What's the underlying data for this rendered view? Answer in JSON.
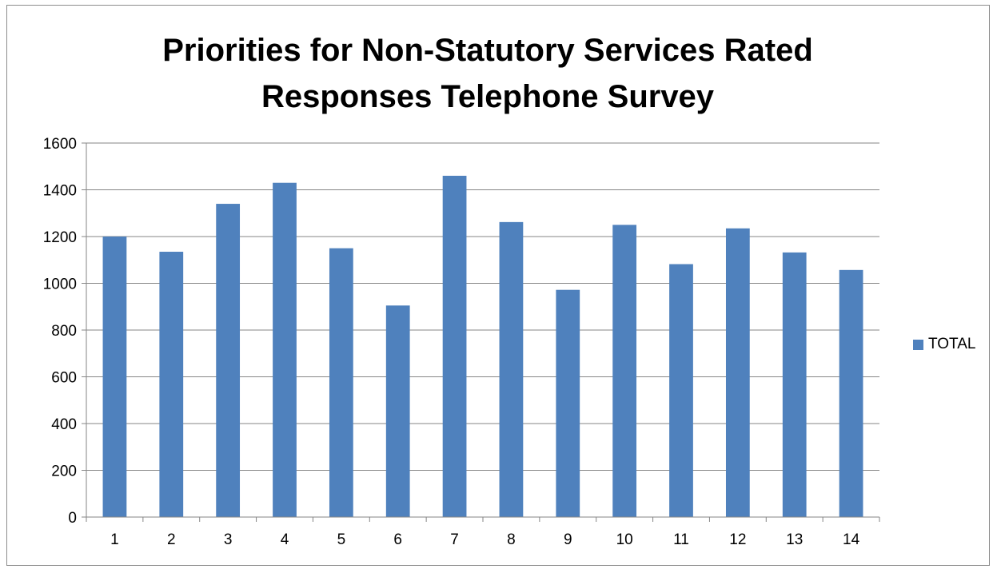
{
  "chart_data": {
    "type": "bar",
    "title": "Priorities for Non-Statutory Services Rated Responses Telephone Survey",
    "title_lines": [
      "Priorities for Non-Statutory Services Rated",
      "Responses Telephone Survey"
    ],
    "categories": [
      "1",
      "2",
      "3",
      "4",
      "5",
      "6",
      "7",
      "8",
      "9",
      "10",
      "11",
      "12",
      "13",
      "14"
    ],
    "series": [
      {
        "name": "TOTAL",
        "color": "#4f81bd",
        "values": [
          1200,
          1135,
          1340,
          1430,
          1150,
          905,
          1460,
          1262,
          972,
          1250,
          1082,
          1235,
          1132,
          1057
        ]
      }
    ],
    "xlabel": "",
    "ylabel": "",
    "ylim": [
      0,
      1600
    ],
    "yticks": [
      0,
      200,
      400,
      600,
      800,
      1000,
      1200,
      1400,
      1600
    ],
    "grid": true,
    "legend_position": "right"
  }
}
